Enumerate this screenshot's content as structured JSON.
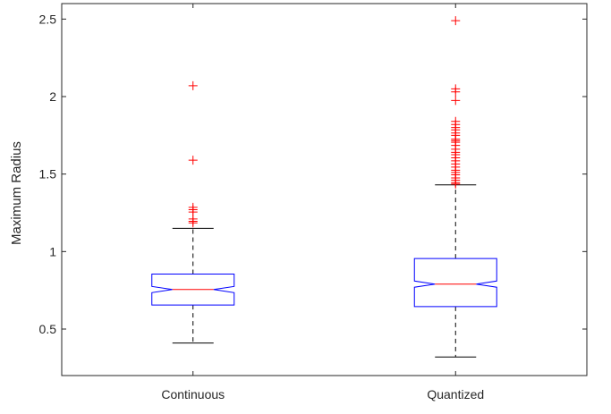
{
  "chart_data": {
    "type": "boxplot",
    "title": "",
    "xlabel": "",
    "ylabel": "Maximum Radius",
    "ylim": [
      0.2,
      2.6
    ],
    "yticks": [
      0.5,
      1,
      1.5,
      2,
      2.5
    ],
    "ytick_labels": [
      "0.5",
      "1",
      "1.5",
      "2",
      "2.5"
    ],
    "grid": false,
    "notched": true,
    "colors": {
      "box": "#0000ff",
      "median": "#ff0000",
      "whisker": "#000000",
      "outlier": "#ff0000",
      "axis": "#262626"
    },
    "categories": [
      "Continuous",
      "Quantized"
    ],
    "boxes": [
      {
        "category": "Continuous",
        "q1": 0.655,
        "median": 0.755,
        "q3": 0.855,
        "notch_low": 0.735,
        "notch_high": 0.775,
        "whisker_low": 0.41,
        "whisker_high": 1.15,
        "outliers": [
          2.07,
          1.59,
          1.285,
          1.27,
          1.255,
          1.21,
          1.195,
          1.185
        ]
      },
      {
        "category": "Quantized",
        "q1": 0.645,
        "median": 0.79,
        "q3": 0.955,
        "notch_low": 0.77,
        "notch_high": 0.81,
        "whisker_low": 0.32,
        "whisker_high": 1.43,
        "outliers": [
          2.49,
          2.05,
          2.03,
          1.975,
          1.84,
          1.82,
          1.8,
          1.785,
          1.765,
          1.75,
          1.725,
          1.715,
          1.705,
          1.685,
          1.66,
          1.64,
          1.625,
          1.605,
          1.585,
          1.565,
          1.545,
          1.525,
          1.51,
          1.495,
          1.475,
          1.46,
          1.445,
          1.435
        ]
      }
    ]
  }
}
